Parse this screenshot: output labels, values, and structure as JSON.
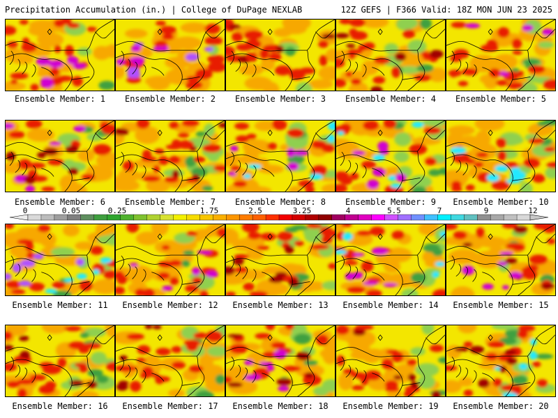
{
  "header": {
    "left": "Precipitation Accumulation (in.) | College of DuPage NEXLAB",
    "right": "12Z GEFS | F366 Valid: 18Z MON JUN 23 2025"
  },
  "member_label_prefix": "Ensemble Member:",
  "members": [
    {
      "id": 1,
      "label": "1"
    },
    {
      "id": 2,
      "label": "2"
    },
    {
      "id": 3,
      "label": "3"
    },
    {
      "id": 4,
      "label": "4"
    },
    {
      "id": 5,
      "label": "5"
    },
    {
      "id": 6,
      "label": "6"
    },
    {
      "id": 7,
      "label": "7"
    },
    {
      "id": 8,
      "label": "8"
    },
    {
      "id": 9,
      "label": "9"
    },
    {
      "id": 10,
      "label": "10"
    },
    {
      "id": 11,
      "label": "11"
    },
    {
      "id": 12,
      "label": "12"
    },
    {
      "id": 13,
      "label": "13"
    },
    {
      "id": 14,
      "label": "14"
    },
    {
      "id": 15,
      "label": "15"
    },
    {
      "id": 16,
      "label": "16"
    },
    {
      "id": 17,
      "label": "17"
    },
    {
      "id": 18,
      "label": "18"
    },
    {
      "id": 19,
      "label": "19"
    },
    {
      "id": 20,
      "label": "20"
    }
  ],
  "colorbar": {
    "tick_labels": [
      "0",
      "0.05",
      "0.25",
      "1",
      "1.75",
      "2.5",
      "3.25",
      "4",
      "5.5",
      "7",
      "9",
      "12"
    ],
    "colors": [
      "#d9d9d9",
      "#bcbcbc",
      "#9e9e9e",
      "#808080",
      "#5f8f5f",
      "#3f9f3f",
      "#2fa52f",
      "#4fb32f",
      "#7fc230",
      "#b0d231",
      "#d8e232",
      "#f3f000",
      "#f6dc00",
      "#f8c600",
      "#fab000",
      "#fc9600",
      "#fd7c00",
      "#fe6000",
      "#fe3000",
      "#f20000",
      "#d40000",
      "#b00000",
      "#900000",
      "#a00060",
      "#c00090",
      "#e000c0",
      "#ff00ff",
      "#d050ff",
      "#a070ff",
      "#7090ff",
      "#40c0ff",
      "#00f0ff",
      "#40d8e0",
      "#60c0c0",
      "#909090",
      "#a8a8a8",
      "#c0c0c0",
      "#d8d8d8"
    ]
  },
  "precip_palette": {
    "yellow": "#f3e600",
    "orange": "#f7a800",
    "red": "#e81a00",
    "dark_red": "#a00000",
    "magenta": "#d000d0",
    "violet": "#b050ff",
    "cyan": "#20e8ff",
    "light_green": "#8fd04f",
    "green": "#3fa040"
  }
}
